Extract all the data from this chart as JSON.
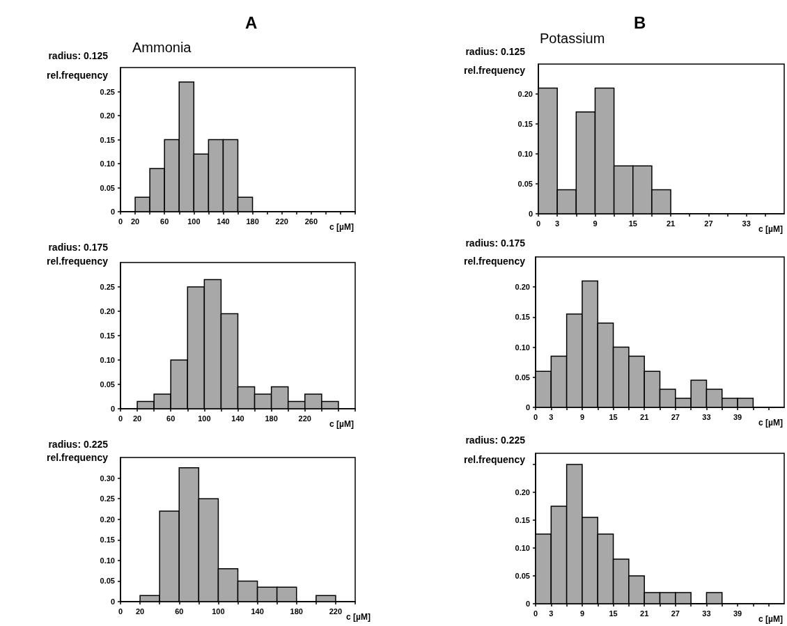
{
  "chart_data": [
    {
      "type": "histogram",
      "title": "radius: 0.125",
      "ylabel": "rel.frequency",
      "xlabel": "c [µM]",
      "annotations": [
        "A",
        "Ammonia"
      ],
      "color": "#a8a8a8",
      "bins": [
        20,
        40,
        60,
        80,
        100,
        120,
        140,
        160,
        180
      ],
      "values": [
        0.03,
        0.09,
        0.15,
        0.27,
        0.12,
        0.15,
        0.15,
        0.03
      ],
      "xlim": [
        0,
        320
      ],
      "xticks": [
        0,
        20,
        {
          "value": 40,
          "label": null
        },
        60,
        {
          "value": 80,
          "label": null
        },
        100,
        {
          "value": 120,
          "label": null
        },
        140,
        {
          "value": 160,
          "label": null
        },
        180,
        {
          "value": 200,
          "label": null
        },
        220,
        {
          "value": 240,
          "label": null
        },
        260,
        {
          "value": 280,
          "label": null
        },
        {
          "value": 300,
          "label": null
        },
        {
          "value": 320,
          "label": null
        }
      ],
      "ylim": [
        0,
        0.3
      ],
      "yticks": [
        0,
        0.05,
        {
          "value": 0.1,
          "label": "0.10"
        },
        0.15,
        {
          "value": 0.2,
          "label": "0.20"
        },
        0.25
      ]
    },
    {
      "type": "histogram",
      "title": "radius: 0.125",
      "ylabel": "rel.frequency",
      "xlabel": "c [µM]",
      "annotations": [
        "B",
        "Potassium"
      ],
      "color": "#a8a8a8",
      "bins": [
        0,
        3,
        6,
        9,
        12,
        15,
        18,
        21
      ],
      "values": [
        0.21,
        0.04,
        0.17,
        0.21,
        0.08,
        0.08,
        0.04
      ],
      "xlim": [
        0,
        39
      ],
      "xticks": [
        0,
        3,
        {
          "value": 6,
          "label": null
        },
        9,
        {
          "value": 12,
          "label": null
        },
        15,
        {
          "value": 18,
          "label": null
        },
        21,
        {
          "value": 24,
          "label": null
        },
        27,
        {
          "value": 30,
          "label": null
        },
        33,
        {
          "value": 36,
          "label": null
        }
      ],
      "ylim": [
        0,
        0.25
      ],
      "yticks": [
        0,
        0.05,
        {
          "value": 0.1,
          "label": "0.10"
        },
        0.15,
        {
          "value": 0.2,
          "label": "0.20"
        }
      ]
    },
    {
      "type": "histogram",
      "title": "radius: 0.175",
      "ylabel": "rel.frequency",
      "xlabel": "c [µM]",
      "color": "#a8a8a8",
      "bins": [
        20,
        40,
        60,
        80,
        100,
        120,
        140,
        160,
        180,
        200,
        220,
        240,
        260
      ],
      "values": [
        0.015,
        0.03,
        0.1,
        0.25,
        0.265,
        0.195,
        0.045,
        0.03,
        0.045,
        0.015,
        0.03,
        0.015
      ],
      "xlim": [
        0,
        280
      ],
      "xticks": [
        0,
        20,
        {
          "value": 40,
          "label": null
        },
        60,
        {
          "value": 80,
          "label": null
        },
        100,
        {
          "value": 120,
          "label": null
        },
        140,
        {
          "value": 160,
          "label": null
        },
        180,
        {
          "value": 200,
          "label": null
        },
        220,
        {
          "value": 240,
          "label": null
        },
        {
          "value": 260,
          "label": null
        },
        {
          "value": 280,
          "label": null
        }
      ],
      "ylim": [
        0,
        0.3
      ],
      "yticks": [
        0,
        0.05,
        {
          "value": 0.1,
          "label": "0.10"
        },
        0.15,
        {
          "value": 0.2,
          "label": "0.20"
        },
        0.25
      ]
    },
    {
      "type": "histogram",
      "title": "radius: 0.175",
      "ylabel": "rel.frequency",
      "xlabel": "c [µM]",
      "color": "#a8a8a8",
      "bins": [
        0,
        3,
        6,
        9,
        12,
        15,
        18,
        21,
        24,
        27,
        30,
        33,
        36,
        39,
        42
      ],
      "values": [
        0.06,
        0.085,
        0.155,
        0.21,
        0.14,
        0.1,
        0.085,
        0.06,
        0.03,
        0.015,
        0.045,
        0.03,
        0.015,
        0.015
      ],
      "xlim": [
        0,
        48
      ],
      "xticks": [
        0,
        3,
        {
          "value": 6,
          "label": null
        },
        9,
        {
          "value": 12,
          "label": null
        },
        15,
        {
          "value": 18,
          "label": null
        },
        21,
        {
          "value": 24,
          "label": null
        },
        27,
        {
          "value": 30,
          "label": null
        },
        33,
        {
          "value": 36,
          "label": null
        },
        39,
        {
          "value": 42,
          "label": null
        },
        {
          "value": 45,
          "label": null
        }
      ],
      "ylim": [
        0,
        0.25
      ],
      "yticks": [
        0,
        0.05,
        {
          "value": 0.1,
          "label": "0.10"
        },
        0.15,
        {
          "value": 0.2,
          "label": "0.20"
        }
      ]
    },
    {
      "type": "histogram",
      "title": "radius: 0.225",
      "ylabel": "rel.frequency",
      "xlabel": "c [µM]",
      "color": "#a8a8a8",
      "bins": [
        20,
        40,
        60,
        80,
        100,
        120,
        140,
        160,
        180,
        200,
        220
      ],
      "values": [
        0.015,
        0.22,
        0.325,
        0.25,
        0.08,
        0.05,
        0.035,
        0.035,
        0,
        0.015
      ],
      "xlim": [
        0,
        240
      ],
      "xticks": [
        0,
        20,
        {
          "value": 40,
          "label": null
        },
        60,
        {
          "value": 80,
          "label": null
        },
        100,
        {
          "value": 120,
          "label": null
        },
        140,
        {
          "value": 160,
          "label": null
        },
        180,
        {
          "value": 200,
          "label": null
        },
        220,
        {
          "value": 240,
          "label": null
        }
      ],
      "ylim": [
        0,
        0.35
      ],
      "yticks": [
        0,
        0.05,
        {
          "value": 0.1,
          "label": "0.10"
        },
        0.15,
        {
          "value": 0.2,
          "label": "0.20"
        },
        0.25,
        {
          "value": 0.3,
          "label": "0.30"
        }
      ]
    },
    {
      "type": "histogram",
      "title": "radius: 0.225",
      "ylabel": "rel.frequency",
      "xlabel": "c [µM]",
      "color": "#a8a8a8",
      "bins": [
        0,
        3,
        6,
        9,
        12,
        15,
        18,
        21,
        24,
        27,
        30,
        33,
        36
      ],
      "values": [
        0.125,
        0.175,
        0.25,
        0.155,
        0.125,
        0.08,
        0.05,
        0.02,
        0.02,
        0.02,
        0,
        0.02
      ],
      "xlim": [
        0,
        48
      ],
      "xticks": [
        0,
        3,
        {
          "value": 6,
          "label": null
        },
        9,
        {
          "value": 12,
          "label": null
        },
        15,
        {
          "value": 18,
          "label": null
        },
        21,
        {
          "value": 24,
          "label": null
        },
        27,
        {
          "value": 30,
          "label": null
        },
        33,
        {
          "value": 36,
          "label": null
        },
        39,
        {
          "value": 42,
          "label": null
        },
        {
          "value": 45,
          "label": null
        }
      ],
      "ylim": [
        0,
        0.27
      ],
      "yticks": [
        0,
        0.05,
        {
          "value": 0.1,
          "label": "0.10"
        },
        0.15,
        {
          "value": 0.2,
          "label": "0.20"
        },
        {
          "value": 0.25,
          "label": null
        }
      ]
    }
  ]
}
